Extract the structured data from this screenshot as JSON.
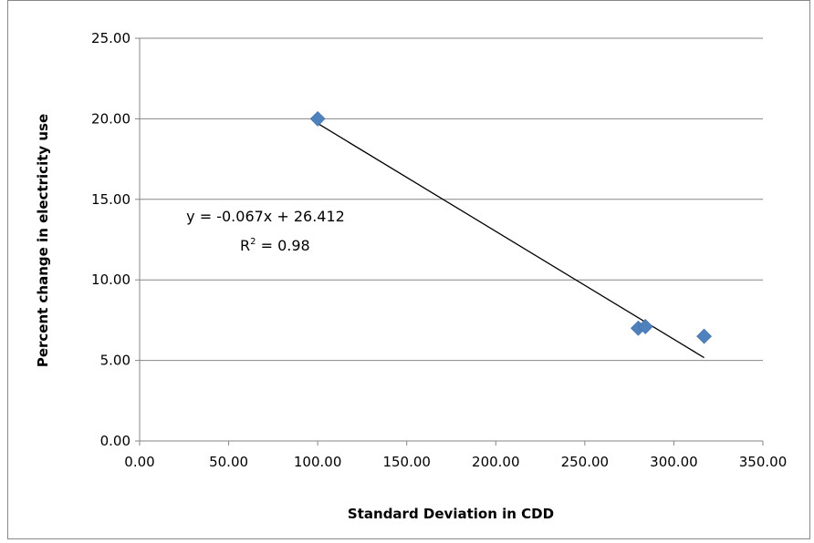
{
  "chart_data": {
    "type": "scatter",
    "xlabel": "Standard Deviation in CDD",
    "ylabel": "Percent change in electricity use",
    "xlim": [
      0,
      350
    ],
    "ylim": [
      0,
      25
    ],
    "xticks": [
      "0.00",
      "50.00",
      "100.00",
      "150.00",
      "200.00",
      "250.00",
      "300.00",
      "350.00"
    ],
    "yticks": [
      "0.00",
      "5.00",
      "10.00",
      "15.00",
      "20.00",
      "25.00"
    ],
    "grid": "horizontal",
    "series": [
      {
        "color": "#4F81BD",
        "marker": "diamond",
        "points": [
          {
            "x": 100,
            "y": 20.0
          },
          {
            "x": 280,
            "y": 7.0
          },
          {
            "x": 284,
            "y": 7.1
          },
          {
            "x": 317,
            "y": 6.5
          }
        ]
      }
    ],
    "trendline": {
      "type": "linear",
      "slope": -0.067,
      "intercept": 26.412,
      "x_range": [
        100,
        317
      ],
      "color": "#000000",
      "equation_label": "y = -0.067x + 26.412",
      "r2_prefix": "R",
      "r2_sup": "2",
      "r2_suffix": " = 0.98"
    }
  }
}
